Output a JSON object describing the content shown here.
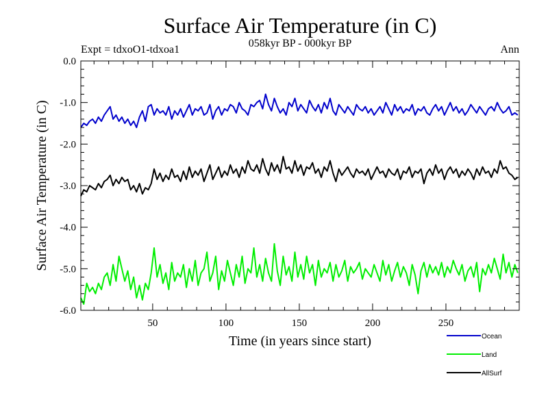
{
  "chart_data": {
    "type": "line",
    "title": "Surface Air Temperature (in C)",
    "subtitle": "058kyr BP - 000kyr BP",
    "experiment_label": "Expt = tdxoO1-tdxoa1",
    "season_label": "Ann",
    "xlabel": "Time (in years since start)",
    "ylabel": "Surface Air Temperature (in C)",
    "xlim": [
      1,
      300
    ],
    "ylim": [
      -6.0,
      0.0
    ],
    "x_ticks": [
      50,
      100,
      150,
      200,
      250
    ],
    "x_tick_labels": [
      "50",
      "100",
      "150",
      "200",
      "250"
    ],
    "y_ticks": [
      0.0,
      -1.0,
      -2.0,
      -3.0,
      -4.0,
      -5.0,
      -6.0
    ],
    "y_tick_labels": [
      "0.0",
      "-1.0",
      "-2.0",
      "-3.0",
      "-4.0",
      "-5.0",
      "-6.0"
    ],
    "grid": false,
    "legend_position": "bottom-right, below plot",
    "series": [
      {
        "name": "Ocean",
        "color": "#0000cc",
        "x": [
          1,
          3,
          5,
          7,
          9,
          11,
          13,
          15,
          17,
          19,
          21,
          23,
          25,
          27,
          29,
          31,
          33,
          35,
          37,
          39,
          41,
          43,
          45,
          47,
          49,
          51,
          53,
          55,
          57,
          59,
          61,
          63,
          65,
          67,
          69,
          71,
          73,
          75,
          77,
          79,
          81,
          83,
          85,
          87,
          89,
          91,
          93,
          95,
          97,
          99,
          101,
          103,
          105,
          107,
          109,
          111,
          113,
          115,
          117,
          119,
          121,
          123,
          125,
          127,
          129,
          131,
          133,
          135,
          137,
          139,
          141,
          143,
          145,
          147,
          149,
          151,
          153,
          155,
          157,
          159,
          161,
          163,
          165,
          167,
          169,
          171,
          173,
          175,
          177,
          179,
          181,
          183,
          185,
          187,
          189,
          191,
          193,
          195,
          197,
          199,
          201,
          203,
          205,
          207,
          209,
          211,
          213,
          215,
          217,
          219,
          221,
          223,
          225,
          227,
          229,
          231,
          233,
          235,
          237,
          239,
          241,
          243,
          245,
          247,
          249,
          251,
          253,
          255,
          257,
          259,
          261,
          263,
          265,
          267,
          269,
          271,
          273,
          275,
          277,
          279,
          281,
          283,
          285,
          287,
          289,
          291,
          293,
          295,
          297,
          299
        ],
        "values": [
          -1.6,
          -1.5,
          -1.55,
          -1.45,
          -1.4,
          -1.5,
          -1.35,
          -1.45,
          -1.3,
          -1.2,
          -1.1,
          -1.4,
          -1.3,
          -1.45,
          -1.35,
          -1.5,
          -1.4,
          -1.55,
          -1.45,
          -1.6,
          -1.35,
          -1.2,
          -1.45,
          -1.1,
          -1.05,
          -1.3,
          -1.15,
          -1.25,
          -1.2,
          -1.3,
          -1.1,
          -1.4,
          -1.2,
          -1.3,
          -1.15,
          -1.35,
          -1.2,
          -1.05,
          -1.3,
          -1.15,
          -1.2,
          -1.1,
          -1.3,
          -1.25,
          -1.05,
          -1.4,
          -1.2,
          -1.1,
          -1.3,
          -1.15,
          -1.2,
          -1.05,
          -1.1,
          -1.25,
          -1.0,
          -1.15,
          -1.2,
          -1.3,
          -1.05,
          -1.1,
          -1.0,
          -0.95,
          -1.15,
          -0.8,
          -1.05,
          -1.2,
          -0.9,
          -1.1,
          -1.25,
          -1.15,
          -1.3,
          -1.0,
          -1.1,
          -0.9,
          -1.2,
          -1.05,
          -1.15,
          -1.25,
          -0.95,
          -1.1,
          -1.2,
          -1.05,
          -1.25,
          -1.0,
          -1.15,
          -0.9,
          -1.2,
          -1.3,
          -1.05,
          -1.15,
          -1.25,
          -1.1,
          -1.2,
          -1.3,
          -1.05,
          -1.15,
          -1.2,
          -1.1,
          -1.25,
          -1.15,
          -1.3,
          -1.2,
          -1.1,
          -1.25,
          -1.0,
          -1.15,
          -1.3,
          -1.05,
          -1.2,
          -1.1,
          -1.25,
          -1.15,
          -1.2,
          -1.05,
          -1.3,
          -1.15,
          -1.2,
          -1.1,
          -1.25,
          -1.3,
          -1.15,
          -1.05,
          -1.2,
          -1.1,
          -1.3,
          -1.15,
          -1.0,
          -1.2,
          -1.1,
          -1.25,
          -1.15,
          -1.3,
          -1.2,
          -1.05,
          -1.15,
          -1.25,
          -1.1,
          -1.2,
          -1.3,
          -1.15,
          -1.1,
          -1.2,
          -1.0,
          -1.15,
          -1.25,
          -1.2,
          -1.1,
          -1.3,
          -1.25,
          -1.3
        ]
      },
      {
        "name": "Land",
        "color": "#00ee00",
        "x": [
          1,
          3,
          5,
          7,
          9,
          11,
          13,
          15,
          17,
          19,
          21,
          23,
          25,
          27,
          29,
          31,
          33,
          35,
          37,
          39,
          41,
          43,
          45,
          47,
          49,
          51,
          53,
          55,
          57,
          59,
          61,
          63,
          65,
          67,
          69,
          71,
          73,
          75,
          77,
          79,
          81,
          83,
          85,
          87,
          89,
          91,
          93,
          95,
          97,
          99,
          101,
          103,
          105,
          107,
          109,
          111,
          113,
          115,
          117,
          119,
          121,
          123,
          125,
          127,
          129,
          131,
          133,
          135,
          137,
          139,
          141,
          143,
          145,
          147,
          149,
          151,
          153,
          155,
          157,
          159,
          161,
          163,
          165,
          167,
          169,
          171,
          173,
          175,
          177,
          179,
          181,
          183,
          185,
          187,
          189,
          191,
          193,
          195,
          197,
          199,
          201,
          203,
          205,
          207,
          209,
          211,
          213,
          215,
          217,
          219,
          221,
          223,
          225,
          227,
          229,
          231,
          233,
          235,
          237,
          239,
          241,
          243,
          245,
          247,
          249,
          251,
          253,
          255,
          257,
          259,
          261,
          263,
          265,
          267,
          269,
          271,
          273,
          275,
          277,
          279,
          281,
          283,
          285,
          287,
          289,
          291,
          293,
          295,
          297,
          299
        ],
        "values": [
          -5.7,
          -5.85,
          -5.35,
          -5.55,
          -5.45,
          -5.6,
          -5.35,
          -5.5,
          -5.2,
          -5.1,
          -5.4,
          -4.9,
          -5.3,
          -4.7,
          -5.0,
          -5.3,
          -5.05,
          -5.5,
          -5.2,
          -5.7,
          -5.4,
          -5.75,
          -5.35,
          -5.5,
          -5.1,
          -4.5,
          -5.2,
          -4.9,
          -5.35,
          -5.1,
          -5.5,
          -4.85,
          -5.3,
          -5.1,
          -5.2,
          -4.9,
          -5.45,
          -5.0,
          -5.3,
          -4.8,
          -5.4,
          -5.1,
          -5.0,
          -4.6,
          -5.3,
          -5.1,
          -4.7,
          -5.5,
          -5.05,
          -5.3,
          -4.8,
          -5.1,
          -5.4,
          -4.9,
          -5.2,
          -4.7,
          -5.35,
          -5.0,
          -5.1,
          -4.5,
          -5.2,
          -4.9,
          -5.3,
          -4.75,
          -5.1,
          -5.3,
          -4.4,
          -5.05,
          -5.4,
          -4.7,
          -5.15,
          -4.95,
          -5.3,
          -4.6,
          -5.2,
          -4.9,
          -5.25,
          -4.7,
          -5.1,
          -4.9,
          -5.4,
          -4.8,
          -5.2,
          -5.0,
          -5.1,
          -4.85,
          -5.3,
          -4.9,
          -5.2,
          -5.05,
          -4.8,
          -5.3,
          -4.95,
          -5.1,
          -5.0,
          -4.85,
          -5.25,
          -5.0,
          -5.1,
          -5.2,
          -4.9,
          -5.1,
          -5.3,
          -4.8,
          -5.15,
          -4.9,
          -5.3,
          -5.05,
          -4.85,
          -5.2,
          -4.95,
          -5.1,
          -5.4,
          -4.9,
          -5.15,
          -5.6,
          -5.05,
          -4.85,
          -5.2,
          -4.9,
          -5.1,
          -4.95,
          -5.15,
          -4.85,
          -5.2,
          -4.95,
          -5.1,
          -4.8,
          -5.0,
          -5.15,
          -4.9,
          -5.3,
          -5.05,
          -4.95,
          -5.2,
          -4.85,
          -5.55,
          -5.0,
          -5.15,
          -4.9,
          -5.1,
          -4.75,
          -5.0,
          -5.25,
          -4.65,
          -5.1,
          -4.85,
          -5.2,
          -4.9,
          -5.1
        ]
      },
      {
        "name": "AllSurf",
        "color": "#000000",
        "x": [
          1,
          3,
          5,
          7,
          9,
          11,
          13,
          15,
          17,
          19,
          21,
          23,
          25,
          27,
          29,
          31,
          33,
          35,
          37,
          39,
          41,
          43,
          45,
          47,
          49,
          51,
          53,
          55,
          57,
          59,
          61,
          63,
          65,
          67,
          69,
          71,
          73,
          75,
          77,
          79,
          81,
          83,
          85,
          87,
          89,
          91,
          93,
          95,
          97,
          99,
          101,
          103,
          105,
          107,
          109,
          111,
          113,
          115,
          117,
          119,
          121,
          123,
          125,
          127,
          129,
          131,
          133,
          135,
          137,
          139,
          141,
          143,
          145,
          147,
          149,
          151,
          153,
          155,
          157,
          159,
          161,
          163,
          165,
          167,
          169,
          171,
          173,
          175,
          177,
          179,
          181,
          183,
          185,
          187,
          189,
          191,
          193,
          195,
          197,
          199,
          201,
          203,
          205,
          207,
          209,
          211,
          213,
          215,
          217,
          219,
          221,
          223,
          225,
          227,
          229,
          231,
          233,
          235,
          237,
          239,
          241,
          243,
          245,
          247,
          249,
          251,
          253,
          255,
          257,
          259,
          261,
          263,
          265,
          267,
          269,
          271,
          273,
          275,
          277,
          279,
          281,
          283,
          285,
          287,
          289,
          291,
          293,
          295,
          297,
          299
        ],
        "values": [
          -3.25,
          -3.1,
          -3.15,
          -3.0,
          -3.05,
          -3.1,
          -2.95,
          -3.05,
          -2.9,
          -2.85,
          -2.75,
          -3.0,
          -2.85,
          -2.95,
          -2.8,
          -2.9,
          -2.85,
          -3.1,
          -3.0,
          -3.15,
          -2.95,
          -3.2,
          -3.05,
          -3.1,
          -2.95,
          -2.6,
          -2.85,
          -2.7,
          -2.9,
          -2.75,
          -2.85,
          -2.6,
          -2.8,
          -2.75,
          -2.9,
          -2.65,
          -2.85,
          -2.55,
          -2.8,
          -2.65,
          -2.75,
          -2.6,
          -2.9,
          -2.7,
          -2.5,
          -2.85,
          -2.7,
          -2.55,
          -2.8,
          -2.65,
          -2.75,
          -2.5,
          -2.7,
          -2.6,
          -2.8,
          -2.55,
          -2.7,
          -2.4,
          -2.6,
          -2.65,
          -2.5,
          -2.7,
          -2.35,
          -2.6,
          -2.75,
          -2.45,
          -2.65,
          -2.5,
          -2.7,
          -2.3,
          -2.6,
          -2.55,
          -2.7,
          -2.4,
          -2.65,
          -2.5,
          -2.75,
          -2.55,
          -2.6,
          -2.45,
          -2.7,
          -2.6,
          -2.8,
          -2.55,
          -2.65,
          -2.4,
          -2.7,
          -2.9,
          -2.6,
          -2.75,
          -2.65,
          -2.55,
          -2.7,
          -2.8,
          -2.6,
          -2.7,
          -2.65,
          -2.75,
          -2.6,
          -2.85,
          -2.7,
          -2.55,
          -2.7,
          -2.65,
          -2.8,
          -2.6,
          -2.7,
          -2.75,
          -2.6,
          -2.85,
          -2.65,
          -2.7,
          -2.55,
          -2.8,
          -2.65,
          -2.7,
          -2.6,
          -2.95,
          -2.7,
          -2.6,
          -2.75,
          -2.5,
          -2.7,
          -2.6,
          -2.85,
          -2.65,
          -2.55,
          -2.7,
          -2.6,
          -2.8,
          -2.65,
          -2.75,
          -2.6,
          -2.7,
          -2.85,
          -2.6,
          -2.75,
          -2.55,
          -2.7,
          -2.65,
          -2.8,
          -2.6,
          -2.7,
          -2.4,
          -2.6,
          -2.55,
          -2.7,
          -2.75,
          -2.85,
          -2.8
        ]
      }
    ]
  }
}
